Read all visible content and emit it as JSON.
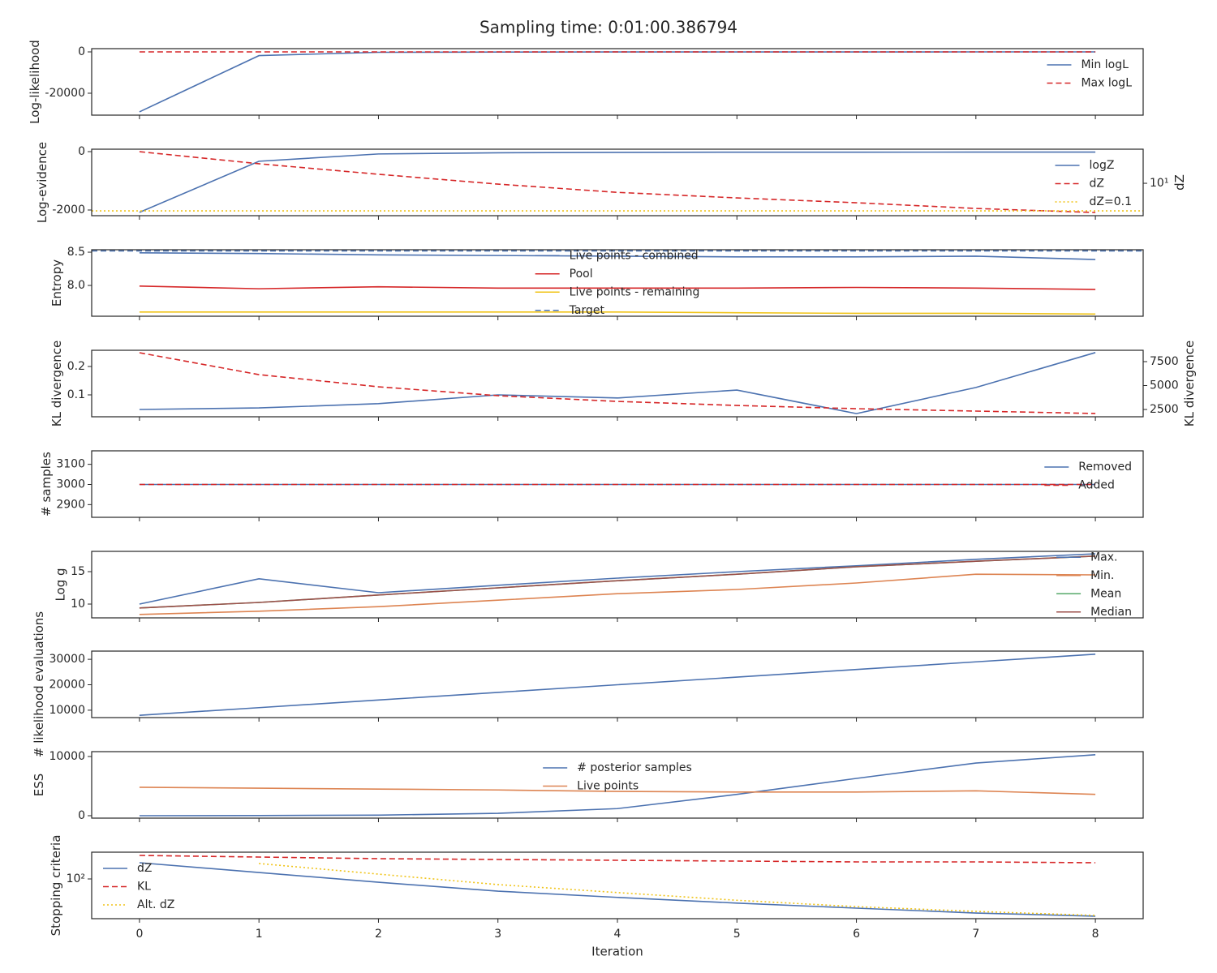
{
  "title": "Sampling time: 0:01:00.386794",
  "chart_data": [
    {
      "type": "line",
      "ylabel": "Log-likelihood",
      "x": [
        0,
        1,
        2,
        3,
        4,
        5,
        6,
        7,
        8
      ],
      "xlim": [
        -0.4,
        8.4
      ],
      "xticks": [
        0,
        1,
        2,
        3,
        4,
        5,
        6,
        7,
        8
      ],
      "show_xticklabels": false,
      "ylim": [
        -30600,
        1570
      ],
      "yticks": [
        -20000,
        0
      ],
      "legend": "upper right",
      "series": [
        {
          "name": "Min logL",
          "color": "#4c72b0",
          "dash": "solid",
          "values": [
            -29000,
            -1800,
            -200,
            -80,
            -40,
            -20,
            -10,
            -5,
            -2
          ]
        },
        {
          "name": "Max logL",
          "color": "#d62728",
          "dash": "dashed",
          "values": [
            0,
            0,
            0,
            0,
            0,
            0,
            0,
            0,
            0
          ]
        }
      ]
    },
    {
      "type": "line",
      "ylabel": "Log-evidence",
      "x": [
        0,
        1,
        2,
        3,
        4,
        5,
        6,
        7,
        8
      ],
      "xlim": [
        -0.4,
        8.4
      ],
      "xticks": [
        0,
        1,
        2,
        3,
        4,
        5,
        6,
        7,
        8
      ],
      "show_xticklabels": false,
      "ylim": [
        -2194,
        83
      ],
      "yticks": [
        -2000,
        0
      ],
      "y2label": "dZ",
      "y2log": true,
      "y2lim": [
        0.045,
        2950
      ],
      "y2ticks": [
        {
          "value": 10,
          "label": "10¹"
        }
      ],
      "legend": "upper right",
      "series": [
        {
          "name": "logZ",
          "color": "#4c72b0",
          "dash": "solid",
          "values": [
            -2080,
            -330,
            -80,
            -40,
            -25,
            -20,
            -18,
            -17,
            -16
          ]
        },
        {
          "name": "dZ",
          "color": "#d62728",
          "dash": "dashed",
          "axis": "y2",
          "values": [
            1950,
            260,
            45,
            8.7,
            2.2,
            0.87,
            0.39,
            0.15,
            0.076
          ]
        }
      ],
      "hlines": [
        {
          "name": "dZ=0.1",
          "color": "#f0c419",
          "dash": "dotted",
          "axis": "y2",
          "value": 0.1
        }
      ]
    },
    {
      "type": "line",
      "ylabel": "Entropy",
      "x": [
        0,
        1,
        2,
        3,
        4,
        5,
        6,
        7,
        8
      ],
      "xlim": [
        -0.4,
        8.4
      ],
      "xticks": [
        0,
        1,
        2,
        3,
        4,
        5,
        6,
        7,
        8
      ],
      "show_xticklabels": false,
      "ylim": [
        7.537,
        8.537
      ],
      "yticks": [
        {
          "value": 8,
          "label": "8.0"
        },
        8.5
      ],
      "legend": "center",
      "series": [
        {
          "name": "Live points - combined",
          "color": "#4c72b0",
          "dash": "solid",
          "values": [
            8.49,
            8.48,
            8.46,
            8.45,
            8.44,
            8.43,
            8.43,
            8.44,
            8.39
          ]
        },
        {
          "name": "Pool",
          "color": "#d62728",
          "dash": "solid",
          "values": [
            7.99,
            7.95,
            7.98,
            7.96,
            7.96,
            7.96,
            7.97,
            7.96,
            7.94
          ]
        },
        {
          "name": "Live points - remaining",
          "color": "#f0c419",
          "dash": "solid",
          "values": [
            7.6,
            7.6,
            7.6,
            7.6,
            7.6,
            7.59,
            7.58,
            7.58,
            7.57
          ]
        }
      ],
      "hlines": [
        {
          "name": "Target",
          "color": "#4c72b0",
          "dash": "dashed",
          "value": 8.52
        }
      ]
    },
    {
      "type": "line",
      "ylabel": "KL divergence",
      "x": [
        0,
        1,
        2,
        3,
        4,
        5,
        6,
        7,
        8
      ],
      "xlim": [
        -0.4,
        8.4
      ],
      "xticks": [
        0,
        1,
        2,
        3,
        4,
        5,
        6,
        7,
        8
      ],
      "show_xticklabels": false,
      "ylim": [
        0.0229,
        0.257
      ],
      "yticks": [
        0.1,
        0.2
      ],
      "y2label": "KL divergence",
      "y2lim": [
        1737,
        8686
      ],
      "y2ticks": [
        2500,
        5000,
        7500
      ],
      "series": [
        {
          "color": "#4c72b0",
          "dash": "solid",
          "values": [
            0.0486,
            0.054,
            0.069,
            0.1,
            0.089,
            0.117,
            0.034,
            0.126,
            0.249
          ]
        },
        {
          "color": "#d62728",
          "dash": "dashed",
          "axis": "y2",
          "values": [
            8430,
            6140,
            4870,
            3940,
            3340,
            2920,
            2580,
            2330,
            2080
          ]
        }
      ]
    },
    {
      "type": "line",
      "ylabel": "# samples",
      "x": [
        0,
        1,
        2,
        3,
        4,
        5,
        6,
        7,
        8
      ],
      "xlim": [
        -0.4,
        8.4
      ],
      "xticks": [
        0,
        1,
        2,
        3,
        4,
        5,
        6,
        7,
        8
      ],
      "show_xticklabels": false,
      "ylim": [
        2837,
        3167
      ],
      "yticks": [
        2900,
        3000,
        3100
      ],
      "legend": "upper right",
      "series": [
        {
          "name": "Removed",
          "color": "#4c72b0",
          "dash": "solid",
          "values": [
            3000,
            3000,
            3000,
            3000,
            3000,
            3000,
            3000,
            3000,
            3000
          ]
        },
        {
          "name": "Added",
          "color": "#d62728",
          "dash": "dashed",
          "values": [
            3000,
            3000,
            3000,
            3000,
            3000,
            3000,
            3000,
            3000,
            3000
          ]
        }
      ]
    },
    {
      "type": "line",
      "ylabel": "Log g",
      "x": [
        0,
        1,
        2,
        3,
        4,
        5,
        6,
        7,
        8
      ],
      "xlim": [
        -0.4,
        8.4
      ],
      "xticks": [
        0,
        1,
        2,
        3,
        4,
        5,
        6,
        7,
        8
      ],
      "show_xticklabels": false,
      "ylim": [
        7.875,
        18.125
      ],
      "yticks": [
        10,
        15
      ],
      "legend": "center right",
      "series": [
        {
          "name": "Max.",
          "color": "#4c72b0",
          "dash": "solid",
          "values": [
            10,
            13.9,
            11.75,
            12.9,
            14,
            15,
            15.9,
            16.9,
            17.75
          ]
        },
        {
          "name": "Min.",
          "color": "#dd8452",
          "dash": "solid",
          "values": [
            8.4,
            8.9,
            9.6,
            10.6,
            11.6,
            12.25,
            13.25,
            14.6,
            14.5
          ]
        },
        {
          "name": "Mean",
          "color": "#55a868",
          "dash": "solid",
          "values": [
            9.4,
            10.25,
            11.4,
            12.5,
            13.6,
            14.6,
            15.75,
            16.6,
            17.4
          ]
        },
        {
          "name": "Median",
          "color": "#9c4f4a",
          "dash": "solid",
          "values": [
            9.4,
            10.25,
            11.4,
            12.5,
            13.6,
            14.6,
            15.75,
            16.6,
            17.4
          ]
        }
      ]
    },
    {
      "type": "line",
      "ylabel": "# likelihood evaluations",
      "x": [
        0,
        1,
        2,
        3,
        4,
        5,
        6,
        7,
        8
      ],
      "xlim": [
        -0.4,
        8.4
      ],
      "xticks": [
        0,
        1,
        2,
        3,
        4,
        5,
        6,
        7,
        8
      ],
      "show_xticklabels": false,
      "ylim": [
        7097,
        33226
      ],
      "yticks": [
        10000,
        20000,
        30000
      ],
      "series": [
        {
          "color": "#4c72b0",
          "dash": "solid",
          "values": [
            8000,
            11000,
            14000,
            17000,
            20000,
            23000,
            26000,
            29000,
            32000
          ]
        }
      ]
    },
    {
      "type": "line",
      "ylabel": "ESS",
      "x": [
        0,
        1,
        2,
        3,
        4,
        5,
        6,
        7,
        8
      ],
      "xlim": [
        -0.4,
        8.4
      ],
      "xticks": [
        0,
        1,
        2,
        3,
        4,
        5,
        6,
        7,
        8
      ],
      "show_xticklabels": false,
      "ylim": [
        -411,
        10822
      ],
      "yticks": [
        0,
        10000
      ],
      "legend": "upper center",
      "series": [
        {
          "name": "# posterior samples",
          "color": "#4c72b0",
          "dash": "solid",
          "values": [
            0,
            20,
            100,
            400,
            1200,
            3600,
            6300,
            8900,
            10300
          ]
        },
        {
          "name": "Live points",
          "color": "#dd8452",
          "dash": "solid",
          "values": [
            4800,
            4650,
            4500,
            4350,
            4100,
            4000,
            4000,
            4200,
            3600
          ]
        }
      ]
    },
    {
      "type": "line",
      "ylabel": "Stopping criteria",
      "xlabel": "Iteration",
      "x": [
        0,
        1,
        2,
        3,
        4,
        5,
        6,
        7,
        8
      ],
      "xlim": [
        -0.4,
        8.4
      ],
      "xticks": [
        0,
        1,
        2,
        3,
        4,
        5,
        6,
        7,
        8
      ],
      "show_xticklabels": true,
      "ylog": true,
      "ylim": [
        5.96,
        668
      ],
      "yticks": [
        {
          "value": 100,
          "label": "10²"
        }
      ],
      "legend": "upper left",
      "series": [
        {
          "name": "dZ",
          "color": "#4c72b0",
          "dash": "solid",
          "values": [
            316,
            158,
            79,
            42,
            27,
            18,
            12.6,
            8.9,
            7.1
          ]
        },
        {
          "name": "KL",
          "color": "#d62728",
          "dash": "dashed",
          "values": [
            531,
            473,
            422,
            398,
            376,
            355,
            335,
            335,
            316
          ]
        },
        {
          "name": "Alt. dZ",
          "color": "#f0c419",
          "dash": "dotted",
          "values": [
            null,
            299,
            141,
            67,
            38,
            22,
            14,
            10,
            7.5
          ]
        }
      ]
    }
  ]
}
